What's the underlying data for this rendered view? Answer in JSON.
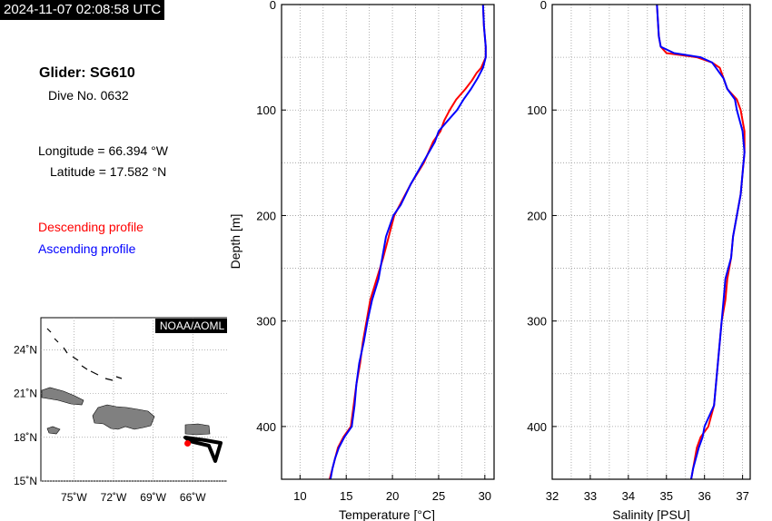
{
  "header": {
    "timestamp": "2024-11-07 02:08:58 UTC"
  },
  "info": {
    "glider": "Glider: SG610",
    "dive": "Dive No. 0632",
    "longitude": "Longitude = 66.394 °W",
    "latitude": "Latitude = 17.582 °N",
    "descending_label": "Descending profile",
    "ascending_label": "Ascending profile"
  },
  "colors": {
    "descending": "#ff0000",
    "ascending": "#0000ff",
    "land": "#808080",
    "track": "#000000",
    "grid": "#9a9a9a"
  },
  "map": {
    "badge": "NOAA/AOML",
    "lat_labels": [
      "24˚N",
      "21˚N",
      "18˚N",
      "15˚N"
    ],
    "lon_labels": [
      "75˚W",
      "72˚W",
      "69˚W",
      "66˚W"
    ],
    "lat_values": [
      24,
      21,
      18,
      15
    ],
    "lon_values": [
      -75,
      -72,
      -69,
      -66
    ],
    "extent": {
      "lon": [
        -77.5,
        -63.2
      ],
      "lat": [
        15,
        26.2
      ]
    },
    "glider_position": {
      "lon": -66.394,
      "lat": 17.582
    }
  },
  "chart_data": [
    {
      "type": "line",
      "xlabel": "Temperature [°C]",
      "ylabel": "Depth [m]",
      "xlim": [
        8,
        31
      ],
      "ylim": [
        450,
        0
      ],
      "x_ticks": [
        10,
        15,
        20,
        25,
        30
      ],
      "y_ticks": [
        0,
        100,
        200,
        300,
        400
      ],
      "grid": true,
      "series": [
        {
          "name": "Descending profile",
          "depth": [
            0,
            20,
            40,
            50,
            60,
            65,
            72,
            80,
            90,
            100,
            110,
            120,
            130,
            150,
            170,
            190,
            200,
            220,
            240,
            260,
            280,
            300,
            320,
            340,
            360,
            380,
            400,
            410,
            420,
            430,
            440,
            450
          ],
          "values": [
            29.8,
            29.9,
            30.1,
            30.1,
            29.6,
            29.1,
            28.6,
            27.9,
            26.9,
            26.2,
            25.6,
            25.2,
            24.4,
            23.4,
            22.0,
            20.8,
            20.2,
            19.6,
            19.0,
            18.3,
            17.6,
            17.2,
            16.8,
            16.5,
            16.1,
            15.8,
            15.5,
            14.7,
            14.1,
            13.8,
            13.5,
            13.2
          ]
        },
        {
          "name": "Ascending profile",
          "depth": [
            0,
            20,
            40,
            50,
            60,
            70,
            80,
            90,
            100,
            110,
            120,
            130,
            150,
            170,
            190,
            200,
            220,
            240,
            260,
            280,
            300,
            320,
            340,
            360,
            380,
            400,
            410,
            420,
            430,
            440,
            450
          ],
          "values": [
            29.8,
            29.9,
            30.1,
            30.1,
            29.8,
            29.2,
            28.5,
            27.7,
            27.0,
            26.0,
            25.0,
            24.6,
            23.3,
            22.0,
            20.9,
            20.1,
            19.3,
            18.9,
            18.5,
            17.8,
            17.3,
            16.9,
            16.4,
            16.1,
            15.9,
            15.6,
            14.8,
            14.2,
            13.8,
            13.5,
            13.3
          ]
        }
      ]
    },
    {
      "type": "line",
      "xlabel": "Salinity [PSU]",
      "ylabel": "",
      "xlim": [
        32,
        37.2
      ],
      "ylim": [
        450,
        0
      ],
      "x_ticks": [
        32,
        33,
        34,
        35,
        36,
        37
      ],
      "y_ticks": [
        0,
        100,
        200,
        300,
        400
      ],
      "grid": true,
      "series": [
        {
          "name": "Descending profile",
          "depth": [
            0,
            30,
            40,
            46,
            50,
            55,
            60,
            70,
            80,
            90,
            100,
            120,
            140,
            160,
            180,
            200,
            220,
            240,
            260,
            280,
            300,
            320,
            340,
            360,
            380,
            400,
            410,
            420,
            440,
            450
          ],
          "values": [
            34.75,
            34.8,
            34.85,
            35.0,
            35.8,
            36.2,
            36.4,
            36.5,
            36.6,
            36.85,
            36.95,
            37.05,
            37.05,
            37.0,
            36.95,
            36.85,
            36.75,
            36.7,
            36.6,
            36.55,
            36.45,
            36.4,
            36.35,
            36.3,
            36.25,
            36.1,
            35.9,
            35.8,
            35.7,
            35.65
          ]
        },
        {
          "name": "Ascending profile",
          "depth": [
            0,
            30,
            40,
            46,
            50,
            55,
            60,
            70,
            80,
            90,
            100,
            120,
            140,
            160,
            180,
            200,
            220,
            240,
            260,
            280,
            300,
            320,
            340,
            360,
            380,
            400,
            410,
            420,
            440,
            450
          ],
          "values": [
            34.75,
            34.8,
            34.85,
            35.2,
            35.9,
            36.2,
            36.3,
            36.5,
            36.6,
            36.8,
            36.85,
            37.0,
            37.05,
            37.0,
            36.95,
            36.85,
            36.75,
            36.7,
            36.55,
            36.5,
            36.45,
            36.4,
            36.35,
            36.3,
            36.25,
            36.0,
            35.95,
            35.85,
            35.7,
            35.65
          ]
        }
      ]
    }
  ]
}
